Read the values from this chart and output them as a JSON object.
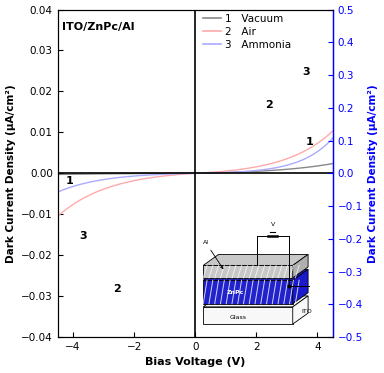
{
  "title": "ITO/ZnPc/Al",
  "xlabel": "Bias Voltage (V)",
  "ylabel_left": "Dark Current Density (μA/cm²)",
  "ylabel_right": "Dark Current Density (μA/cm²)",
  "xlim": [
    -4.5,
    4.5
  ],
  "ylim_left": [
    -0.04,
    0.04
  ],
  "ylim_right": [
    -0.5,
    0.5
  ],
  "xticks": [
    -4,
    -2,
    0,
    2,
    4
  ],
  "yticks_left": [
    -0.04,
    -0.03,
    -0.02,
    -0.01,
    0.0,
    0.01,
    0.02,
    0.03,
    0.04
  ],
  "yticks_right": [
    -0.5,
    -0.4,
    -0.3,
    -0.2,
    -0.1,
    0.0,
    0.1,
    0.2,
    0.3,
    0.4,
    0.5
  ],
  "color_vacuum": "#888888",
  "color_air": "#ffaaaa",
  "color_ammonia": "#aaaaff",
  "color_right_axis": "#0000ff",
  "background_color": "#ffffff",
  "znpc_color": "#2222cc",
  "glass_color": "#f0f0f0",
  "al_color": "#d0d0d0"
}
